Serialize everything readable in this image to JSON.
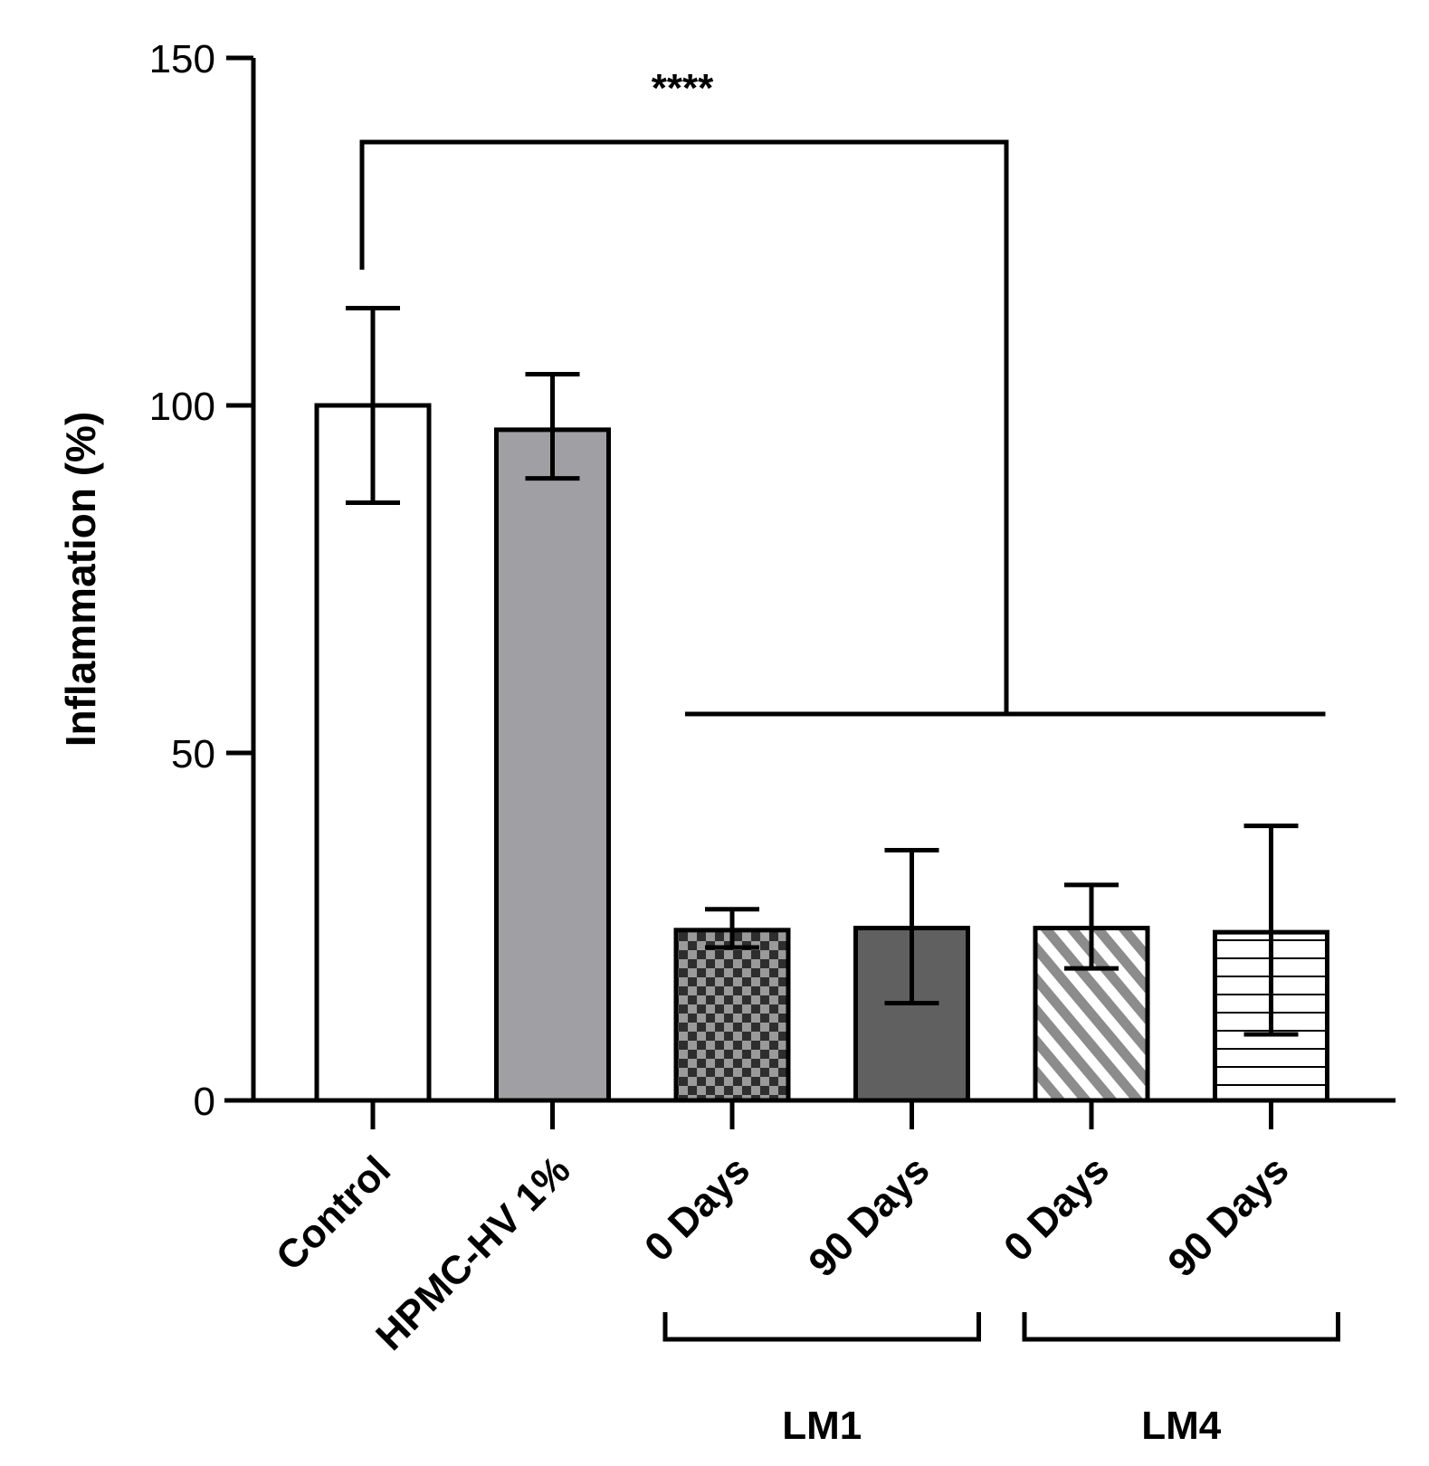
{
  "chart_data": {
    "type": "bar",
    "title": "",
    "xlabel": "",
    "ylabel": "Inflammation (%)",
    "ylim": [
      0,
      150
    ],
    "yticks": [
      0,
      50,
      100,
      150
    ],
    "grid": false,
    "categories": [
      "Control",
      "HPMC-HV 1%",
      "0 Days",
      "90 Days",
      "0 Days",
      "90 Days"
    ],
    "values": [
      100,
      96.5,
      24.5,
      24.8,
      24.8,
      24.2
    ],
    "error": [
      [
        86,
        114
      ],
      [
        89.5,
        104.5
      ],
      [
        22,
        27.5
      ],
      [
        14,
        36
      ],
      [
        19,
        31
      ],
      [
        9.5,
        39.5
      ]
    ],
    "fills": [
      {
        "pattern": "solid",
        "color": "#ffffff"
      },
      {
        "pattern": "solid",
        "color": "#a0a0a4"
      },
      {
        "pattern": "checker",
        "color": "#2e2e2e",
        "color2": "#9a9a9a"
      },
      {
        "pattern": "solid",
        "color": "#606060"
      },
      {
        "pattern": "diagonal",
        "color": "#8c8c8c",
        "color2": "#ffffff"
      },
      {
        "pattern": "horizontal",
        "color": "#ffffff",
        "color2": "#000000"
      }
    ],
    "groups": [
      {
        "label": "LM1",
        "from": 2,
        "to": 3
      },
      {
        "label": "LM4",
        "from": 4,
        "to": 5
      }
    ],
    "significance": {
      "label": "****",
      "from_category": 0,
      "to_from": 2,
      "to_to": 5
    }
  }
}
